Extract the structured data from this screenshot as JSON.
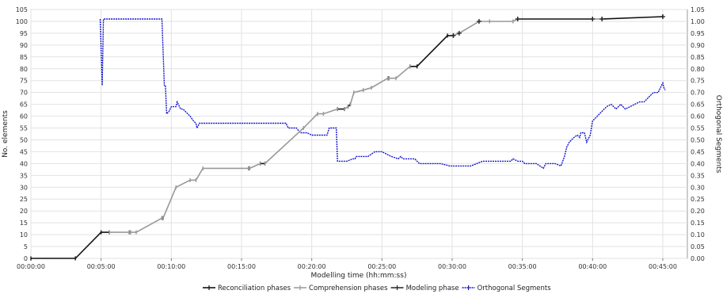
{
  "chart_data": {
    "type": "line",
    "title": "",
    "xlabel": "Modelling time (hh:mm:ss)",
    "ylabel": "No. elements",
    "y2label": "Orthogonal Segments",
    "x_unit": "seconds",
    "xlim": [
      0,
      2805
    ],
    "ylim": [
      0,
      105
    ],
    "y2lim": [
      0,
      1.05
    ],
    "x_ticks": [
      {
        "value": 0,
        "label": "00:00:00"
      },
      {
        "value": 300,
        "label": "00:05:00"
      },
      {
        "value": 600,
        "label": "00:10:00"
      },
      {
        "value": 900,
        "label": "00:15:00"
      },
      {
        "value": 1200,
        "label": "00:20:00"
      },
      {
        "value": 1500,
        "label": "00:25:00"
      },
      {
        "value": 1800,
        "label": "00:30:00"
      },
      {
        "value": 2100,
        "label": "00:35:00"
      },
      {
        "value": 2400,
        "label": "00:40:00"
      },
      {
        "value": 2700,
        "label": "00:45:00"
      }
    ],
    "y_ticks": [
      0,
      5,
      10,
      15,
      20,
      25,
      30,
      35,
      40,
      45,
      50,
      55,
      60,
      65,
      70,
      75,
      80,
      85,
      90,
      95,
      100,
      105
    ],
    "y2_ticks": [
      "0.00",
      "0.05",
      "0.10",
      "0.15",
      "0.20",
      "0.25",
      "0.30",
      "0.35",
      "0.40",
      "0.45",
      "0.50",
      "0.55",
      "0.60",
      "0.65",
      "0.70",
      "0.75",
      "0.80",
      "0.85",
      "0.90",
      "0.95",
      "1.00",
      "1.05"
    ],
    "grid": true,
    "legend_position": "bottom",
    "series": [
      {
        "name": "Reconciliation phases",
        "axis": "left",
        "color": "#111111",
        "marker": "|",
        "segments": [
          [
            [
              0,
              0
            ],
            [
              190,
              0
            ],
            [
              300,
              11
            ],
            [
              335,
              11
            ]
          ],
          [
            [
              420,
              11
            ],
            [
              425,
              11
            ]
          ],
          [
            [
              560,
              17
            ],
            [
              565,
              17
            ]
          ],
          [
            [
              930,
              38
            ],
            [
              935,
              38
            ]
          ],
          [
            [
              980,
              40
            ],
            [
              1000,
              40
            ]
          ],
          [
            [
              1310,
              63
            ],
            [
              1340,
              63
            ]
          ],
          [
            [
              1355,
              64
            ],
            [
              1365,
              65
            ]
          ],
          [
            [
              1525,
              76
            ],
            [
              1530,
              76
            ]
          ],
          [
            [
              1620,
              81
            ],
            [
              1650,
              81
            ],
            [
              1780,
              94
            ],
            [
              1805,
              94
            ]
          ],
          [
            [
              2080,
              101
            ],
            [
              2400,
              101
            ]
          ],
          [
            [
              2440,
              101
            ],
            [
              2700,
              102
            ]
          ]
        ]
      },
      {
        "name": "Comprehension phases",
        "axis": "left",
        "color": "#999999",
        "marker": "|",
        "segments": [
          [
            [
              335,
              11
            ],
            [
              420,
              11
            ]
          ],
          [
            [
              425,
              11
            ],
            [
              450,
              11
            ],
            [
              560,
              17
            ]
          ],
          [
            [
              565,
              17
            ],
            [
              620,
              30
            ],
            [
              680,
              33
            ],
            [
              705,
              33
            ],
            [
              735,
              38
            ],
            [
              930,
              38
            ]
          ],
          [
            [
              935,
              38
            ],
            [
              980,
              40
            ]
          ],
          [
            [
              1000,
              40
            ],
            [
              1165,
              55
            ],
            [
              1225,
              61
            ],
            [
              1250,
              61
            ],
            [
              1310,
              63
            ]
          ],
          [
            [
              1340,
              63
            ],
            [
              1355,
              64
            ]
          ],
          [
            [
              1365,
              65
            ],
            [
              1380,
              70
            ],
            [
              1420,
              71
            ],
            [
              1455,
              72
            ],
            [
              1525,
              76
            ]
          ],
          [
            [
              1530,
              76
            ],
            [
              1560,
              76
            ],
            [
              1620,
              81
            ]
          ],
          [
            [
              1805,
              94
            ],
            [
              1830,
              95
            ],
            [
              1915,
              100
            ],
            [
              1960,
              100
            ],
            [
              2060,
              100
            ],
            [
              2080,
              101
            ]
          ],
          [
            [
              2400,
              101
            ],
            [
              2440,
              101
            ]
          ]
        ]
      },
      {
        "name": "Modeling phase",
        "axis": "left",
        "color": "#222222",
        "marker": "+",
        "points": [
          [
            1805,
            94
          ],
          [
            1830,
            95
          ],
          [
            1915,
            100
          ],
          [
            2080,
            101
          ],
          [
            2400,
            101
          ],
          [
            2440,
            101
          ],
          [
            2700,
            102
          ]
        ]
      },
      {
        "name": "Orthogonal Segments",
        "axis": "right",
        "color": "#1414d2",
        "dashed": true,
        "x": [
          296,
          305,
          310,
          320,
          560,
          570,
          575,
          580,
          590,
          600,
          620,
          625,
          640,
          650,
          680,
          695,
          705,
          710,
          720,
          730,
          800,
          850,
          870,
          900,
          950,
          1000,
          1050,
          1090,
          1100,
          1135,
          1150,
          1160,
          1175,
          1180,
          1200,
          1210,
          1250,
          1265,
          1275,
          1305,
          1310,
          1340,
          1350,
          1375,
          1385,
          1390,
          1400,
          1420,
          1440,
          1470,
          1500,
          1540,
          1570,
          1580,
          1590,
          1640,
          1660,
          1700,
          1720,
          1750,
          1790,
          1825,
          1830,
          1880,
          1930,
          1965,
          2020,
          2050,
          2060,
          2080,
          2085,
          2095,
          2100,
          2110,
          2125,
          2150,
          2160,
          2175,
          2190,
          2200,
          2220,
          2240,
          2265,
          2280,
          2290,
          2300,
          2320,
          2335,
          2345,
          2350,
          2365,
          2375,
          2390,
          2400,
          2420,
          2440,
          2460,
          2480,
          2500,
          2520,
          2540,
          2560,
          2580,
          2600,
          2620,
          2640,
          2660,
          2680,
          2700,
          2705,
          2710
        ],
        "y": [
          1.01,
          0.73,
          1.01,
          1.01,
          1.01,
          0.73,
          0.73,
          0.61,
          0.62,
          0.64,
          0.64,
          0.66,
          0.63,
          0.63,
          0.6,
          0.58,
          0.57,
          0.55,
          0.57,
          0.57,
          0.57,
          0.57,
          0.57,
          0.57,
          0.57,
          0.57,
          0.57,
          0.57,
          0.55,
          0.55,
          0.53,
          0.53,
          0.53,
          0.53,
          0.52,
          0.52,
          0.52,
          0.52,
          0.55,
          0.55,
          0.41,
          0.41,
          0.41,
          0.42,
          0.42,
          0.43,
          0.43,
          0.43,
          0.43,
          0.45,
          0.45,
          0.43,
          0.42,
          0.43,
          0.42,
          0.42,
          0.4,
          0.4,
          0.4,
          0.4,
          0.39,
          0.39,
          0.39,
          0.39,
          0.41,
          0.41,
          0.41,
          0.41,
          0.42,
          0.41,
          0.41,
          0.41,
          0.41,
          0.4,
          0.4,
          0.4,
          0.4,
          0.39,
          0.38,
          0.4,
          0.4,
          0.4,
          0.39,
          0.43,
          0.47,
          0.49,
          0.51,
          0.52,
          0.51,
          0.53,
          0.53,
          0.49,
          0.52,
          0.58,
          0.6,
          0.62,
          0.64,
          0.65,
          0.63,
          0.65,
          0.63,
          0.64,
          0.65,
          0.66,
          0.66,
          0.68,
          0.7,
          0.7,
          0.74,
          0.72,
          0.71
        ]
      }
    ]
  }
}
